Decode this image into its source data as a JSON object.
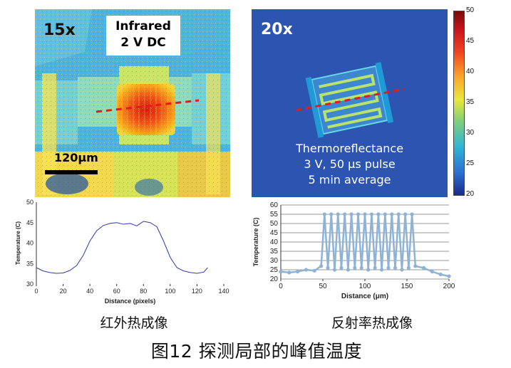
{
  "left_panel": {
    "magnification": "15x",
    "mode_label_line1": "Infrared",
    "mode_label_line2": "2 V DC",
    "scale_bar_label": "120μm",
    "caption": "红外热成像"
  },
  "right_panel": {
    "magnification": "20x",
    "method_line1": "Thermoreflectance",
    "method_line2": "3 V, 50 μs pulse",
    "method_line3": "5 min average",
    "caption": "反射率热成像"
  },
  "colorbar": {
    "ticks": [
      "50",
      "45",
      "40",
      "35",
      "30",
      "25",
      "20"
    ]
  },
  "figure_caption": "图12 探测局部的峰值温度",
  "chart_data": [
    {
      "type": "line",
      "xlabel": "Distance (pixels)",
      "ylabel": "Temperature (C)",
      "xlim": [
        0,
        140
      ],
      "ylim": [
        30,
        50
      ],
      "xticks": [
        "0",
        "20",
        "40",
        "60",
        "80",
        "100",
        "120",
        "140"
      ],
      "yticks": [
        "30",
        "35",
        "40",
        "45",
        "50"
      ],
      "x": [
        0,
        5,
        10,
        15,
        20,
        25,
        30,
        35,
        40,
        45,
        50,
        55,
        60,
        65,
        70,
        75,
        80,
        85,
        90,
        95,
        100,
        105,
        110,
        115,
        120,
        125,
        128
      ],
      "series": [
        {
          "values": [
            34,
            33.2,
            32.8,
            32.6,
            32.7,
            33.3,
            34.5,
            37,
            40.5,
            43,
            44.3,
            44.8,
            45,
            44.6,
            44.8,
            44.2,
            45.3,
            45,
            44,
            40.5,
            36.5,
            34,
            33.2,
            32.8,
            32.6,
            32.9,
            34
          ]
        }
      ]
    },
    {
      "type": "line",
      "xlabel": "Distance (μm)",
      "ylabel": "Temperature (C)",
      "xlim": [
        0,
        200
      ],
      "ylim": [
        20,
        60
      ],
      "grid": true,
      "xticks": [
        "0",
        "50",
        "100",
        "150",
        "200"
      ],
      "yticks": [
        "20",
        "25",
        "30",
        "35",
        "40",
        "45",
        "50",
        "55",
        "60"
      ],
      "x": [
        0,
        10,
        20,
        30,
        40,
        48,
        52,
        56,
        60,
        64,
        68,
        72,
        76,
        80,
        84,
        88,
        92,
        96,
        100,
        104,
        108,
        112,
        116,
        120,
        124,
        128,
        132,
        136,
        140,
        144,
        148,
        152,
        156,
        160,
        170,
        180,
        190,
        200
      ],
      "series": [
        {
          "values": [
            24,
            23.5,
            24,
            25,
            24.5,
            27,
            55,
            26,
            55,
            25,
            55,
            26,
            55,
            25,
            55,
            26,
            55,
            26,
            55,
            25,
            55,
            26,
            55,
            25,
            55,
            26,
            55,
            26,
            55,
            25,
            55,
            26,
            55,
            27,
            26,
            24,
            22.5,
            21.5
          ]
        }
      ]
    }
  ]
}
